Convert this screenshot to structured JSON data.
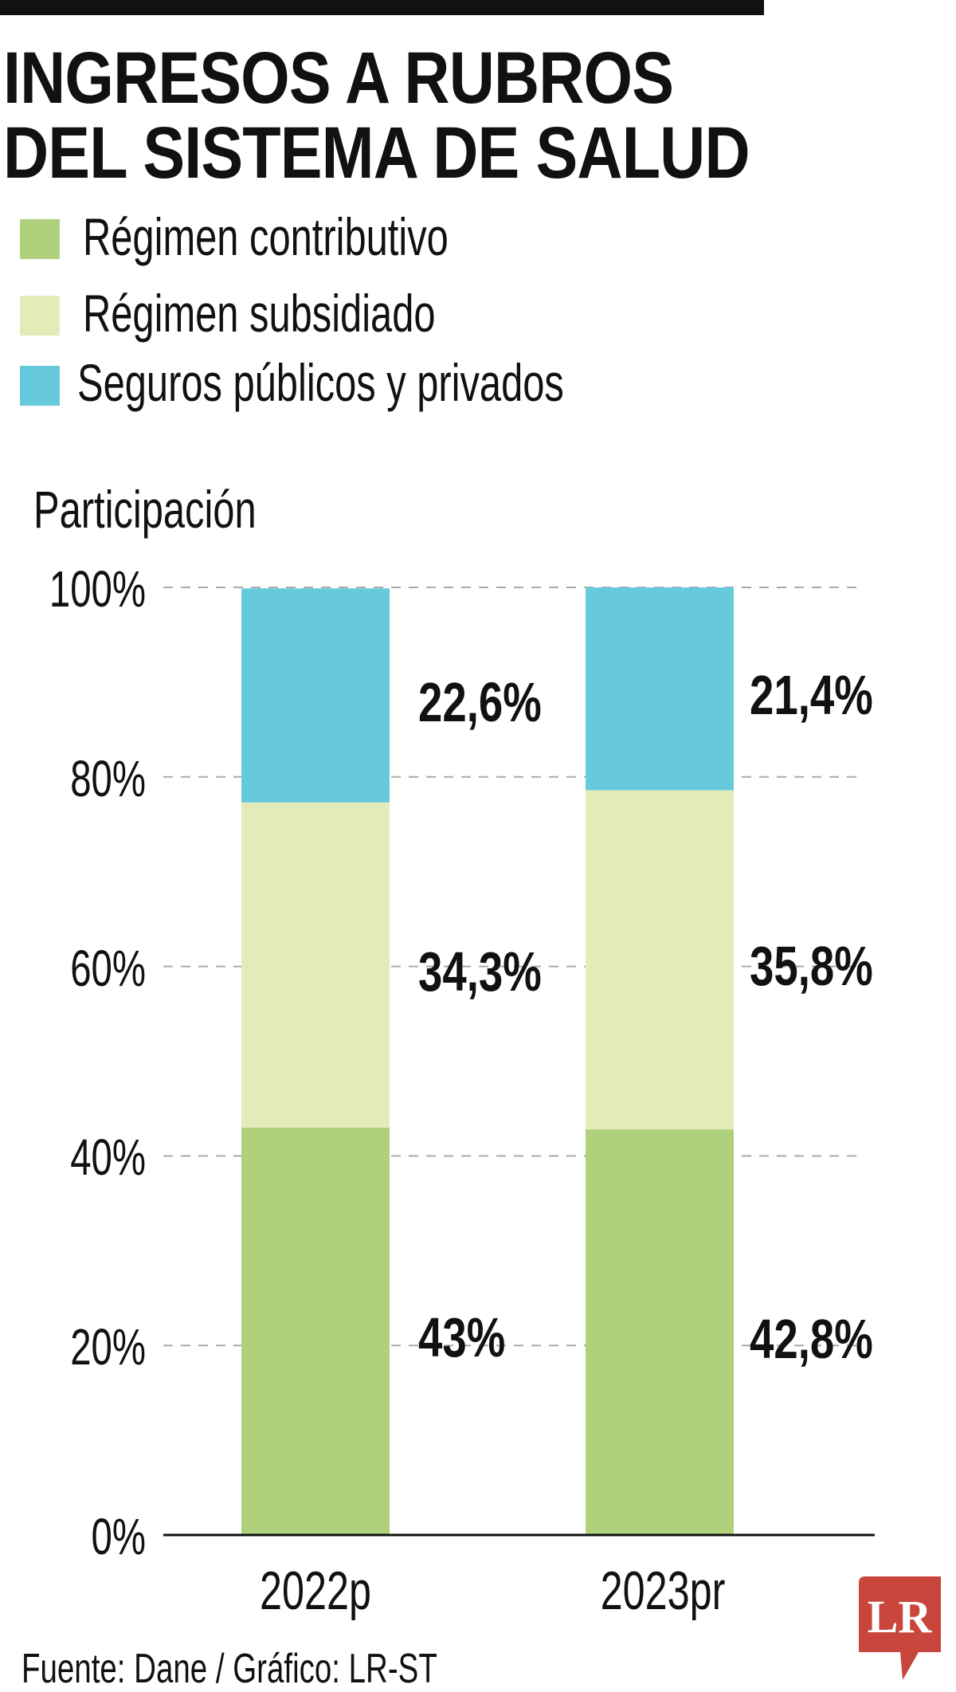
{
  "chart_data": {
    "type": "bar",
    "stacked": true,
    "title": "INGRESOS A RUBROS DEL SISTEMA DE SALUD",
    "title_lines": [
      "INGRESOS A RUBROS",
      "DEL SISTEMA DE SALUD"
    ],
    "ylabel": "Participación",
    "xlabel": "",
    "ylim": [
      0,
      100
    ],
    "yticks": [
      "0%",
      "20%",
      "40%",
      "60%",
      "80%",
      "100%"
    ],
    "ytick_values": [
      0,
      20,
      40,
      60,
      80,
      100
    ],
    "grid": true,
    "categories": [
      "2022p",
      "2023pr"
    ],
    "series": [
      {
        "name": "Régimen contributivo",
        "color": "#afd17c",
        "values": [
          43,
          42.8
        ],
        "labels": [
          "43%",
          "42,8%"
        ]
      },
      {
        "name": "Régimen subsidiado",
        "color": "#e3ecb8",
        "values": [
          34.3,
          35.8
        ],
        "labels": [
          "34,3%",
          "35,8%"
        ]
      },
      {
        "name": "Seguros públicos y privados",
        "color": "#67cadc",
        "values": [
          22.6,
          21.4
        ],
        "labels": [
          "22,6%",
          "21,4%"
        ]
      }
    ],
    "legend": "top-left",
    "source": "Fuente: Dane / Gráfico: LR-ST"
  },
  "logo": {
    "text": "LR",
    "color": "#c9463d"
  }
}
